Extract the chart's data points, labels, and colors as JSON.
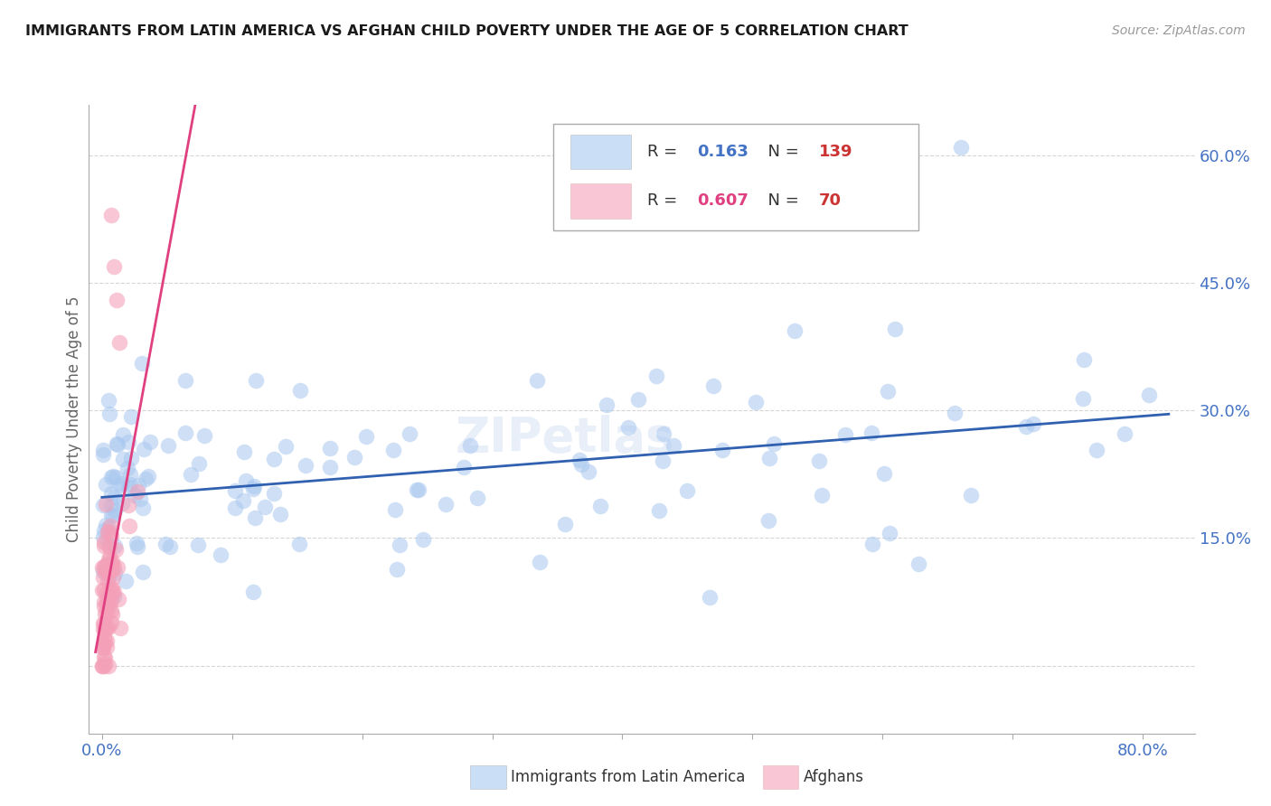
{
  "title": "IMMIGRANTS FROM LATIN AMERICA VS AFGHAN CHILD POVERTY UNDER THE AGE OF 5 CORRELATION CHART",
  "source": "Source: ZipAtlas.com",
  "ylabel": "Child Poverty Under the Age of 5",
  "legend_blue_r": "0.163",
  "legend_blue_n": "139",
  "legend_pink_r": "0.607",
  "legend_pink_n": "70",
  "blue_color": "#a8c8f0",
  "pink_color": "#f4a0b8",
  "blue_line_color": "#3060b0",
  "pink_line_color": "#e04080",
  "tick_label_color": "#4472c4",
  "ylabel_color": "#666666",
  "watermark": "ZIPetlas",
  "ytick_values": [
    0,
    15,
    30,
    45,
    60
  ],
  "ytick_labels": [
    "",
    "15.0%",
    "30.0%",
    "45.0%",
    "60.0%"
  ],
  "xtick_values": [
    0.0,
    0.1,
    0.2,
    0.3,
    0.4,
    0.5,
    0.6,
    0.7,
    0.8
  ],
  "xtick_labels": [
    "0.0%",
    "",
    "",
    "",
    "",
    "",
    "",
    "",
    "80.0%"
  ],
  "xlim": [
    -0.01,
    0.84
  ],
  "ylim": [
    -8,
    66
  ]
}
